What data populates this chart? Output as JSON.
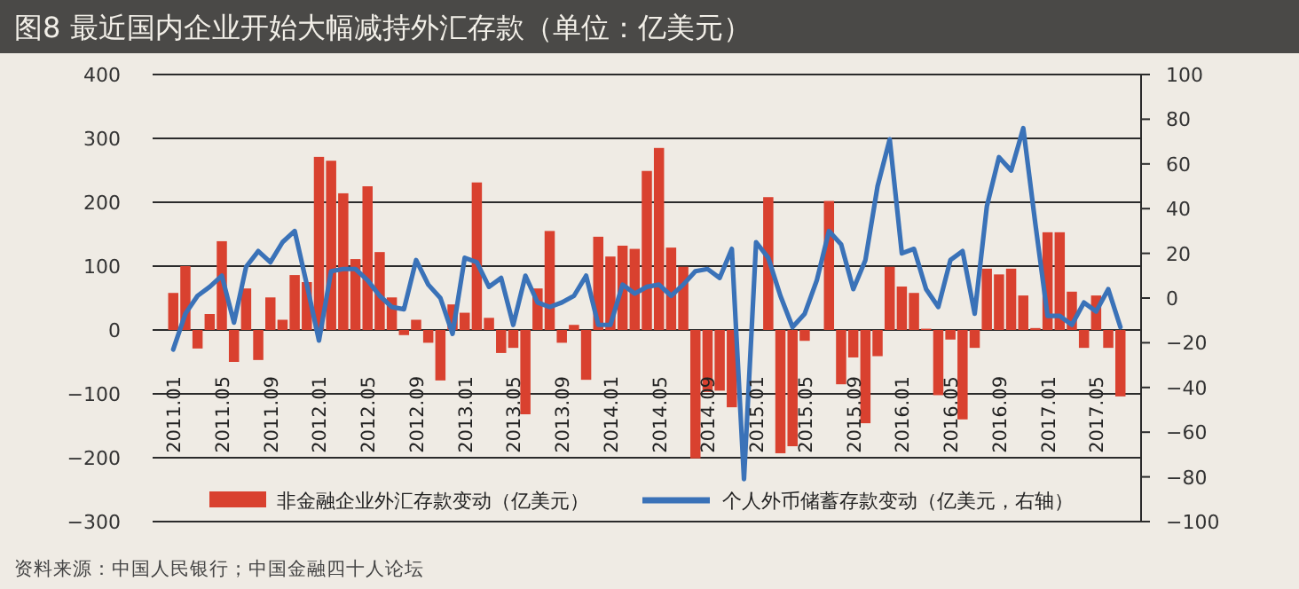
{
  "chart_data": {
    "type": "bar",
    "title": "图8  最近国内企业开始大幅减持外汇存款（单位：亿美元）",
    "annotations": [
      "资料来源：中国人民银行；中国金融四十人论坛"
    ],
    "categories": [
      "2011.01",
      null,
      null,
      null,
      "2011.05",
      null,
      null,
      null,
      "2011.09",
      null,
      null,
      null,
      "2012.01",
      null,
      null,
      null,
      "2012.05",
      null,
      null,
      null,
      "2012.09",
      null,
      null,
      null,
      "2013.01",
      null,
      null,
      null,
      "2013.05",
      null,
      null,
      null,
      "2013.09",
      null,
      null,
      null,
      "2014.01",
      null,
      null,
      null,
      "2014.05",
      null,
      null,
      null,
      "2014.09",
      null,
      null,
      null,
      "2015.01",
      null,
      null,
      null,
      "2015.05",
      null,
      null,
      null,
      "2015.09",
      null,
      null,
      null,
      "2016.01",
      null,
      null,
      null,
      "2016.05",
      null,
      null,
      null,
      "2016.09",
      null,
      null,
      null,
      "2017.01",
      null,
      null,
      null,
      "2017.05",
      null,
      null
    ],
    "series": [
      {
        "name": "非金融企业外汇存款变动（亿美元）",
        "color": "#d9412f",
        "values": [
          58,
          100,
          -29,
          25,
          139,
          -50,
          65,
          -47,
          51,
          16,
          86,
          75,
          271,
          265,
          214,
          111,
          225,
          122,
          51,
          -8,
          16,
          -20,
          -79,
          40,
          27,
          231,
          19,
          -36,
          -28,
          -132,
          65,
          155,
          -20,
          8,
          -78,
          146,
          115,
          132,
          127,
          249,
          285,
          129,
          99,
          -201,
          -97,
          -95,
          -121,
          null,
          null,
          208,
          -193,
          -182,
          -17,
          null,
          202,
          -85,
          -43,
          -146,
          -41,
          99,
          68,
          58,
          2,
          -102,
          -15,
          -140,
          -28,
          96,
          87,
          96,
          54,
          3,
          153,
          153,
          60,
          -28,
          54,
          -28,
          -104
        ]
      },
      {
        "name": "个人外币储蓄存款变动（亿美元，右轴）",
        "type": "line",
        "axis": "y2",
        "color": "#3a72b8",
        "values": [
          -23,
          -7,
          1,
          5,
          10,
          -11,
          14,
          21,
          16,
          25,
          30,
          6,
          -19,
          12,
          13,
          13,
          8,
          1,
          -4,
          -5,
          17,
          6,
          0,
          -16,
          18,
          16,
          5,
          9,
          -12,
          10,
          -2,
          -4,
          -2,
          1,
          10,
          -12,
          -12,
          6,
          2,
          5,
          6,
          1,
          6,
          12,
          13,
          9,
          22,
          -81,
          25,
          18,
          1,
          -13,
          -7,
          8,
          30,
          24,
          4,
          17,
          50,
          71,
          20,
          22,
          4,
          -4,
          17,
          21,
          -7,
          41,
          63,
          57,
          76,
          33,
          -8,
          -8,
          -12,
          -2,
          -6,
          4,
          -13
        ]
      }
    ],
    "ylim": [
      -300,
      400
    ],
    "yticks": [
      -300,
      -200,
      -100,
      0,
      100,
      200,
      300,
      400
    ],
    "y2lim": [
      -100,
      100
    ],
    "y2ticks": [
      -100,
      -80,
      -60,
      -40,
      -20,
      0,
      20,
      40,
      60,
      80,
      100
    ],
    "grid": "y",
    "legend": "bottom"
  }
}
